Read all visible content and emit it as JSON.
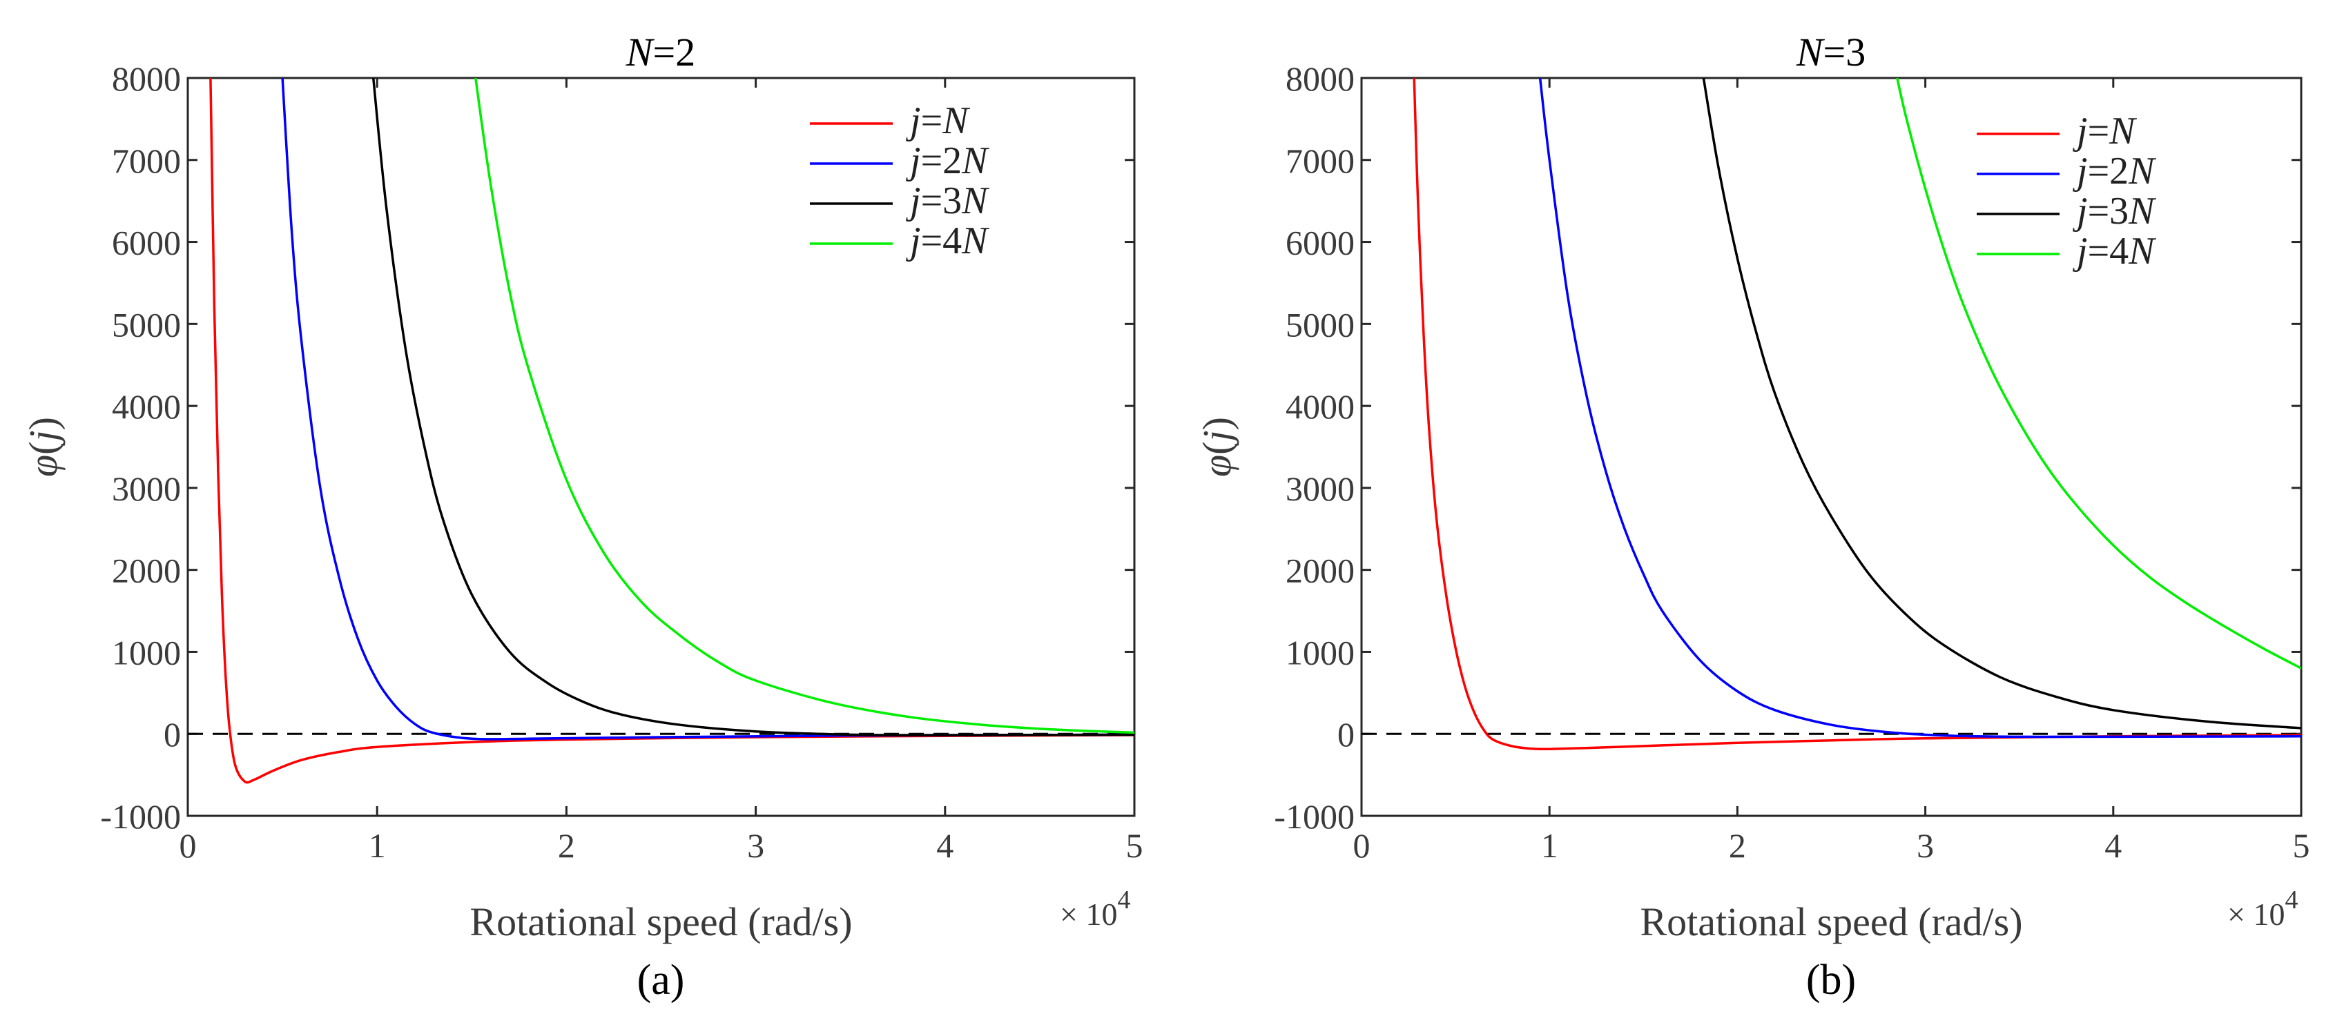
{
  "chart_data": [
    {
      "type": "line",
      "panel_label": "(a)",
      "title": "N=2",
      "title_parts": {
        "var": "N",
        "rest": "=2"
      },
      "xlabel": "Rotational speed (rad/s)",
      "ylabel": "φ(j)",
      "ylabel_parts": {
        "phi": "φ",
        "open": "(",
        "var": "j",
        "close": ")"
      },
      "x_multiplier": "× 10",
      "x_multiplier_exp": "4",
      "xlim": [
        0,
        5
      ],
      "ylim": [
        -1000,
        8000
      ],
      "xticks": [
        "0",
        "1",
        "2",
        "3",
        "4",
        "5"
      ],
      "yticks": [
        "-1000",
        "0",
        "1000",
        "2000",
        "3000",
        "4000",
        "5000",
        "6000",
        "7000",
        "8000"
      ],
      "legend_position": "top-right",
      "reference_line": {
        "y": 0,
        "style": "dashed",
        "color": "#000000"
      },
      "series": [
        {
          "name": "j=N",
          "legend_parts": {
            "a": "j",
            "b": "=",
            "c": "N"
          },
          "color": "#ff0000",
          "x": [
            0.12,
            0.14,
            0.16,
            0.18,
            0.2,
            0.22,
            0.25,
            0.3,
            0.35,
            0.45,
            0.6,
            0.8,
            1.0,
            1.5,
            2.0,
            3.0,
            4.0,
            5.0
          ],
          "y": [
            8000,
            5200,
            3200,
            1700,
            700,
            80,
            -380,
            -580,
            -560,
            -450,
            -320,
            -220,
            -160,
            -100,
            -70,
            -40,
            -25,
            -15
          ]
        },
        {
          "name": "j=2N",
          "legend_parts": {
            "a": "j",
            "b": "=2",
            "c": "N"
          },
          "color": "#0000ff",
          "x": [
            0.5,
            0.55,
            0.6,
            0.7,
            0.8,
            0.9,
            1.0,
            1.1,
            1.2,
            1.3,
            1.5,
            1.8,
            2.5,
            3.5,
            5.0
          ],
          "y": [
            8000,
            6100,
            4800,
            3000,
            1900,
            1150,
            650,
            330,
            120,
            10,
            -60,
            -60,
            -40,
            -20,
            -10
          ]
        },
        {
          "name": "j=3N",
          "legend_parts": {
            "a": "j",
            "b": "=3",
            "c": "N"
          },
          "color": "#000000",
          "x": [
            0.98,
            1.05,
            1.15,
            1.25,
            1.35,
            1.5,
            1.7,
            1.9,
            2.1,
            2.3,
            2.6,
            3.0,
            3.5,
            4.0,
            5.0
          ],
          "y": [
            8000,
            6400,
            4700,
            3500,
            2600,
            1700,
            1000,
            620,
            380,
            230,
            110,
            30,
            -10,
            -15,
            -10
          ]
        },
        {
          "name": "j=4N",
          "legend_parts": {
            "a": "j",
            "b": "=4",
            "c": "N"
          },
          "color": "#00ee00",
          "x": [
            1.52,
            1.6,
            1.7,
            1.8,
            2.0,
            2.2,
            2.4,
            2.6,
            2.8,
            3.0,
            3.4,
            3.8,
            4.2,
            4.6,
            5.0
          ],
          "y": [
            8000,
            6700,
            5400,
            4450,
            3100,
            2200,
            1600,
            1200,
            880,
            650,
            380,
            210,
            110,
            50,
            15
          ]
        }
      ]
    },
    {
      "type": "line",
      "panel_label": "(b)",
      "title": "N=3",
      "title_parts": {
        "var": "N",
        "rest": "=3"
      },
      "xlabel": "Rotational speed (rad/s)",
      "ylabel": "φ(j)",
      "ylabel_parts": {
        "phi": "φ",
        "open": "(",
        "var": "j",
        "close": ")"
      },
      "x_multiplier": "× 10",
      "x_multiplier_exp": "4",
      "xlim": [
        0,
        5
      ],
      "ylim": [
        -1000,
        8000
      ],
      "xticks": [
        "0",
        "1",
        "2",
        "3",
        "4",
        "5"
      ],
      "yticks": [
        "-1000",
        "0",
        "1000",
        "2000",
        "3000",
        "4000",
        "5000",
        "6000",
        "7000",
        "8000"
      ],
      "legend_position": "top-right",
      "reference_line": {
        "y": 0,
        "style": "dashed",
        "color": "#000000"
      },
      "series": [
        {
          "name": "j=N",
          "legend_parts": {
            "a": "j",
            "b": "=",
            "c": "N"
          },
          "color": "#ff0000",
          "x": [
            0.28,
            0.3,
            0.33,
            0.36,
            0.4,
            0.45,
            0.5,
            0.55,
            0.6,
            0.65,
            0.7,
            0.8,
            0.9,
            1.0,
            1.3,
            1.6,
            2.0,
            2.5,
            3.0,
            4.0,
            5.0
          ],
          "y": [
            8000,
            6500,
            4900,
            3700,
            2600,
            1700,
            1050,
            580,
            260,
            50,
            -70,
            -150,
            -180,
            -185,
            -165,
            -140,
            -110,
            -80,
            -55,
            -30,
            -15
          ]
        },
        {
          "name": "j=2N",
          "legend_parts": {
            "a": "j",
            "b": "=2",
            "c": "N"
          },
          "color": "#0000ff",
          "x": [
            0.95,
            1.0,
            1.1,
            1.2,
            1.3,
            1.4,
            1.5,
            1.6,
            1.8,
            2.0,
            2.2,
            2.5,
            2.8,
            3.1,
            3.5,
            4.0,
            5.0
          ],
          "y": [
            8000,
            7000,
            5300,
            4100,
            3200,
            2500,
            1950,
            1500,
            900,
            520,
            290,
            110,
            20,
            -20,
            -35,
            -35,
            -30
          ]
        },
        {
          "name": "j=3N",
          "legend_parts": {
            "a": "j",
            "b": "=3",
            "c": "N"
          },
          "color": "#000000",
          "x": [
            1.82,
            1.9,
            2.0,
            2.1,
            2.2,
            2.35,
            2.5,
            2.7,
            2.9,
            3.1,
            3.4,
            3.7,
            4.0,
            4.5,
            5.0
          ],
          "y": [
            8000,
            6900,
            5800,
            4900,
            4150,
            3300,
            2650,
            1950,
            1450,
            1080,
            690,
            450,
            290,
            150,
            70
          ]
        },
        {
          "name": "j=4N",
          "legend_parts": {
            "a": "j",
            "b": "=4",
            "c": "N"
          },
          "color": "#00ee00",
          "x": [
            2.85,
            2.9,
            3.0,
            3.1,
            3.2,
            3.35,
            3.5,
            3.65,
            3.8,
            4.0,
            4.2,
            4.4,
            4.6,
            4.8,
            5.0
          ],
          "y": [
            8000,
            7500,
            6650,
            5900,
            5250,
            4450,
            3800,
            3250,
            2800,
            2300,
            1900,
            1580,
            1300,
            1040,
            800
          ]
        }
      ]
    }
  ]
}
